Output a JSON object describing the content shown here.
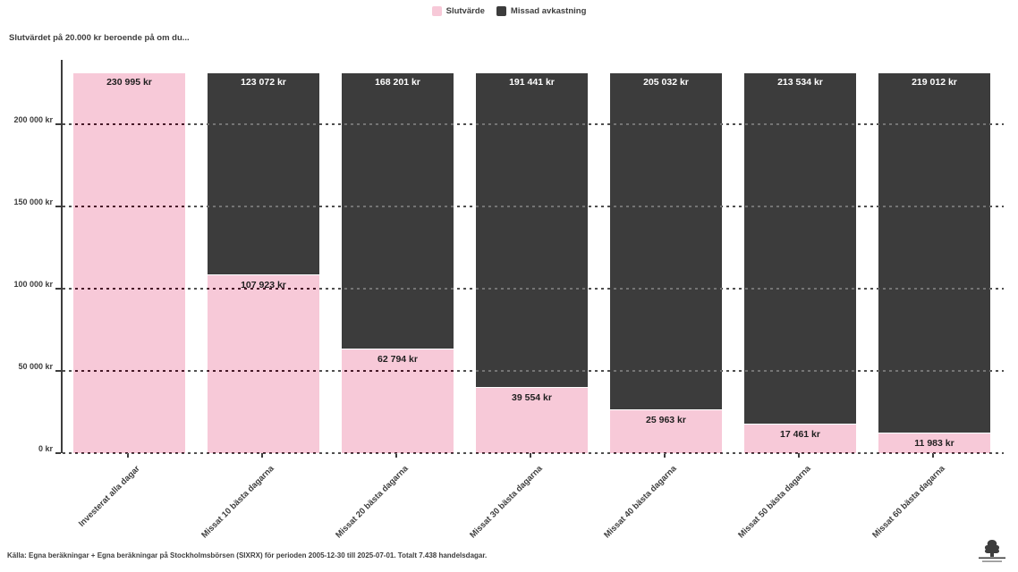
{
  "title": "Slutvärdet på 20.000 kr beroende på om du...",
  "legend": {
    "items": [
      {
        "label": "Slutvärde",
        "color": "#F7C9D8"
      },
      {
        "label": "Missad avkastning",
        "color": "#3C3C3C"
      }
    ]
  },
  "chart_data": {
    "type": "bar",
    "stacked": true,
    "title": "Slutvärdet på 20.000 kr beroende på om du...",
    "categories": [
      "Investerat alla dagar",
      "Missat 10 bästa dagarna",
      "Missat 20 bästa dagarna",
      "Missat 30 bästa dagarna",
      "Missat 40 bästa dagarna",
      "Missat 50 bästa dagarna",
      "Missat 60 bästa dagarna"
    ],
    "series": [
      {
        "name": "Slutvärde",
        "color": "#F7C9D8",
        "values": [
          230995,
          107923,
          62794,
          39554,
          25963,
          17461,
          11983
        ],
        "value_labels": [
          "230 995 kr",
          "107 923 kr",
          "62 794 kr",
          "39 554 kr",
          "25 963 kr",
          "17 461 kr",
          "11 983 kr"
        ]
      },
      {
        "name": "Missad avkastning",
        "color": "#3C3C3C",
        "values": [
          0,
          123072,
          168201,
          191441,
          205032,
          213534,
          219012
        ],
        "value_labels": [
          "",
          "123 072 kr",
          "168 201 kr",
          "191 441 kr",
          "205 032 kr",
          "213 534 kr",
          "219 012 kr"
        ]
      }
    ],
    "bar_total": 230995,
    "ylim": [
      0,
      239000
    ],
    "yticks": [
      {
        "value": 0,
        "label": "0 kr"
      },
      {
        "value": 50000,
        "label": "50 000 kr"
      },
      {
        "value": 100000,
        "label": "100 000 kr"
      },
      {
        "value": 150000,
        "label": "150 000 kr"
      },
      {
        "value": 200000,
        "label": "200 000 kr"
      }
    ],
    "grid": "dashed-horizontal",
    "legend_position": "top-center",
    "xlabel": "",
    "ylabel": ""
  },
  "footer": {
    "source": "Källa: Egna beräkningar + Egna beräkningar på Stockholmsbörsen (SIXRX) för perioden 2005-12-30 till 2025-07-01. Totalt 7.438 handelsdagar."
  },
  "colors": {
    "pink": "#F7C9D8",
    "dark": "#3C3C3C",
    "text": "#3d3d3d",
    "background": "#ffffff"
  }
}
